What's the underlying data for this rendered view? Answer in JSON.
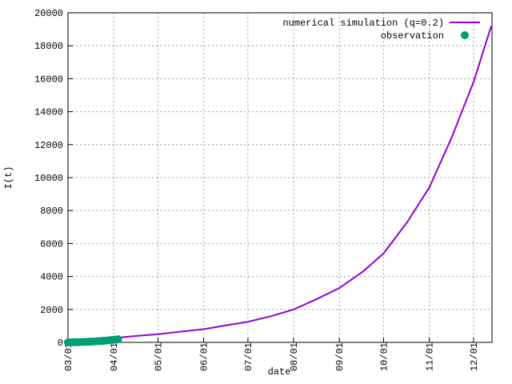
{
  "chart_data": {
    "type": "line",
    "xlabel": "date",
    "ylabel": "I(t)",
    "xlim": [
      0,
      287.5
    ],
    "ylim": [
      0,
      20000
    ],
    "xticks": [
      {
        "value": 0,
        "label": "03/01"
      },
      {
        "value": 31,
        "label": "04/01"
      },
      {
        "value": 61,
        "label": "05/01"
      },
      {
        "value": 92,
        "label": "06/01"
      },
      {
        "value": 122,
        "label": "07/01"
      },
      {
        "value": 153,
        "label": "08/01"
      },
      {
        "value": 184,
        "label": "09/01"
      },
      {
        "value": 214,
        "label": "10/01"
      },
      {
        "value": 245,
        "label": "11/01"
      },
      {
        "value": 275,
        "label": "12/01"
      }
    ],
    "yticks": [
      0,
      2000,
      4000,
      6000,
      8000,
      10000,
      12000,
      14000,
      16000,
      18000,
      20000
    ],
    "grid": true,
    "legend": "top-right",
    "series": [
      {
        "name": "numerical simulation (q=0.2)",
        "color": "#9400d3",
        "style": "line",
        "x": [
          0,
          10,
          20,
          31,
          45,
          61,
          75,
          92,
          105,
          122,
          138,
          153,
          168,
          184,
          200,
          214,
          230,
          245,
          260,
          275,
          287
        ],
        "values": [
          0,
          100,
          180,
          260,
          380,
          500,
          640,
          800,
          1000,
          1250,
          1600,
          2000,
          2600,
          3300,
          4300,
          5400,
          7300,
          9400,
          12400,
          15800,
          19200
        ]
      },
      {
        "name": "observation",
        "color": "#009e73",
        "style": "points",
        "x": [
          0,
          2,
          4,
          6,
          8,
          10,
          12,
          14,
          16,
          18,
          20,
          22,
          24,
          26,
          28,
          30,
          32,
          34
        ],
        "values": [
          2,
          5,
          10,
          15,
          20,
          25,
          30,
          40,
          50,
          60,
          70,
          80,
          95,
          110,
          130,
          150,
          170,
          190
        ]
      }
    ]
  }
}
